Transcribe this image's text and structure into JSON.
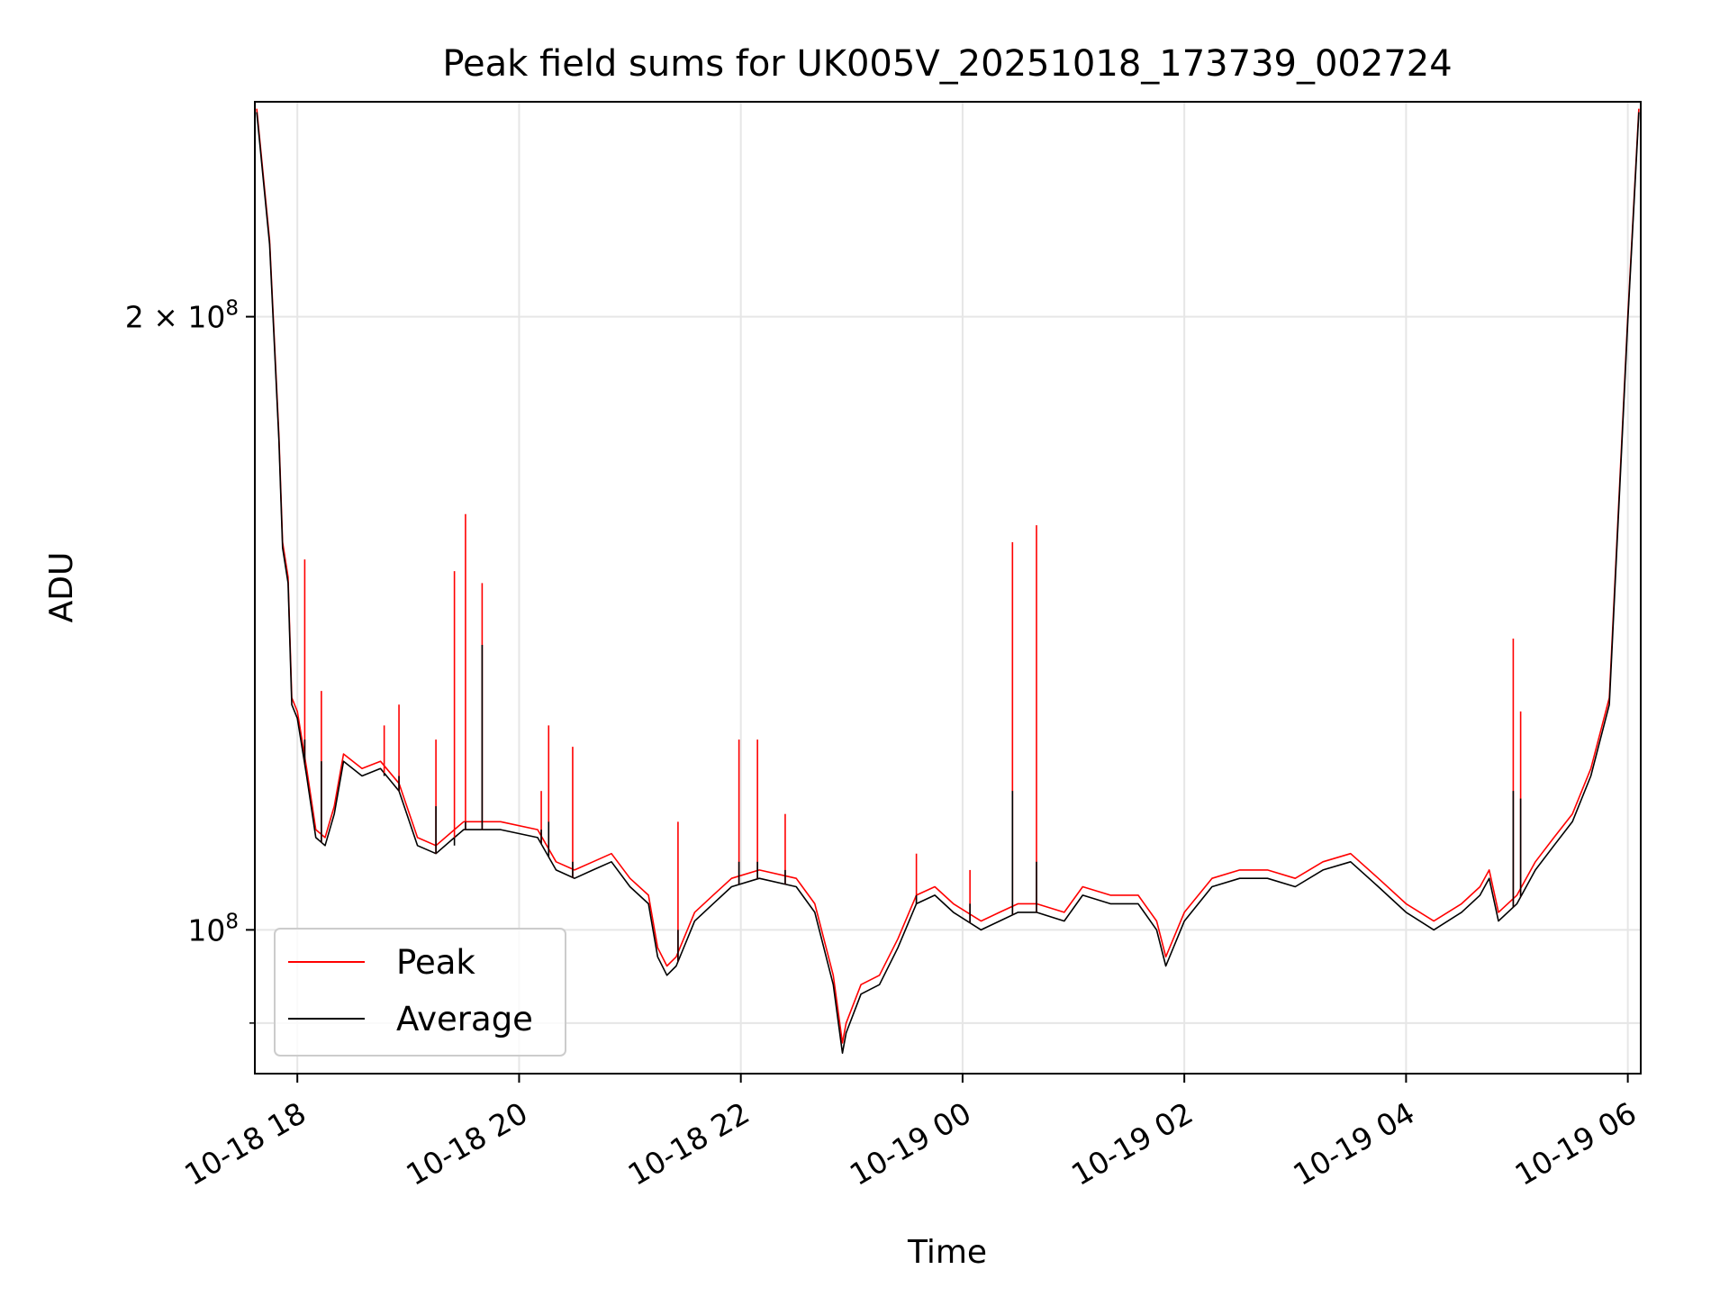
{
  "chart_data": {
    "type": "line",
    "title": "Peak field sums for UK005V_20251018_173739_002724",
    "xlabel": "Time",
    "ylabel": "ADU",
    "y_scale": "log",
    "ylim": [
      85000000,
      255000000
    ],
    "xlim": [
      "2025-10-18T17:37:00",
      "2025-10-19T06:07:00"
    ],
    "x_ticks": [
      {
        "t": "2025-10-18T18:00:00",
        "label": "10-18 18"
      },
      {
        "t": "2025-10-18T20:00:00",
        "label": "10-18 20"
      },
      {
        "t": "2025-10-18T22:00:00",
        "label": "10-18 22"
      },
      {
        "t": "2025-10-19T00:00:00",
        "label": "10-19 00"
      },
      {
        "t": "2025-10-19T02:00:00",
        "label": "10-19 02"
      },
      {
        "t": "2025-10-19T04:00:00",
        "label": "10-19 04"
      },
      {
        "t": "2025-10-19T06:00:00",
        "label": "10-19 06"
      }
    ],
    "y_ticks": [
      {
        "value": 100000000,
        "mantissa": "",
        "exponent": "8",
        "label_major": true
      },
      {
        "value": 200000000,
        "mantissa": "2",
        "exponent": "8",
        "label_major": true
      }
    ],
    "y_minor_ticks": [
      90000000
    ],
    "grid": true,
    "legend_placement": "lower-left",
    "series": [
      {
        "name": "Peak",
        "color": "#ff0000",
        "x": [
          "2025-10-18T17:38:00",
          "2025-10-18T17:45:00",
          "2025-10-18T17:50:00",
          "2025-10-18T17:52:00",
          "2025-10-18T17:55:00",
          "2025-10-18T17:57:00",
          "2025-10-18T18:00:00",
          "2025-10-18T18:05:00",
          "2025-10-18T18:10:00",
          "2025-10-18T18:15:00",
          "2025-10-18T18:20:00",
          "2025-10-18T18:25:00",
          "2025-10-18T18:35:00",
          "2025-10-18T18:45:00",
          "2025-10-18T18:55:00",
          "2025-10-18T19:05:00",
          "2025-10-18T19:15:00",
          "2025-10-18T19:25:00",
          "2025-10-18T19:30:00",
          "2025-10-18T19:40:00",
          "2025-10-18T19:50:00",
          "2025-10-18T20:10:00",
          "2025-10-18T20:20:00",
          "2025-10-18T20:30:00",
          "2025-10-18T20:40:00",
          "2025-10-18T20:50:00",
          "2025-10-18T21:00:00",
          "2025-10-18T21:10:00",
          "2025-10-18T21:15:00",
          "2025-10-18T21:20:00",
          "2025-10-18T21:25:00",
          "2025-10-18T21:35:00",
          "2025-10-18T21:45:00",
          "2025-10-18T21:55:00",
          "2025-10-18T22:10:00",
          "2025-10-18T22:30:00",
          "2025-10-18T22:40:00",
          "2025-10-18T22:50:00",
          "2025-10-18T22:55:00",
          "2025-10-18T22:57:00",
          "2025-10-18T23:05:00",
          "2025-10-18T23:15:00",
          "2025-10-18T23:25:00",
          "2025-10-18T23:35:00",
          "2025-10-18T23:45:00",
          "2025-10-18T23:55:00",
          "2025-10-19T00:10:00",
          "2025-10-19T00:20:00",
          "2025-10-19T00:30:00",
          "2025-10-19T00:40:00",
          "2025-10-19T00:55:00",
          "2025-10-19T01:05:00",
          "2025-10-19T01:20:00",
          "2025-10-19T01:35:00",
          "2025-10-19T01:45:00",
          "2025-10-19T01:50:00",
          "2025-10-19T02:00:00",
          "2025-10-19T02:15:00",
          "2025-10-19T02:30:00",
          "2025-10-19T02:45:00",
          "2025-10-19T03:00:00",
          "2025-10-19T03:15:00",
          "2025-10-19T03:30:00",
          "2025-10-19T03:45:00",
          "2025-10-19T04:00:00",
          "2025-10-19T04:15:00",
          "2025-10-19T04:30:00",
          "2025-10-19T04:40:00",
          "2025-10-19T04:45:00",
          "2025-10-19T04:50:00",
          "2025-10-19T05:00:00",
          "2025-10-19T05:10:00",
          "2025-10-19T05:20:00",
          "2025-10-19T05:30:00",
          "2025-10-19T05:40:00",
          "2025-10-19T05:50:00",
          "2025-10-19T06:00:00",
          "2025-10-19T06:06:00"
        ],
        "values": [
          253000000,
          218000000,
          175000000,
          155000000,
          149000000,
          130000000,
          128000000,
          120000000,
          112000000,
          111000000,
          115000000,
          122000000,
          120000000,
          121000000,
          118000000,
          111000000,
          110000000,
          112000000,
          113000000,
          113000000,
          113000000,
          112000000,
          108000000,
          107000000,
          108000000,
          109000000,
          106000000,
          104000000,
          98000000,
          96000000,
          97000000,
          102000000,
          104000000,
          106000000,
          107000000,
          106000000,
          103000000,
          95000000,
          88000000,
          90000000,
          94000000,
          95000000,
          99000000,
          104000000,
          105000000,
          103000000,
          101000000,
          102000000,
          103000000,
          103000000,
          102000000,
          105000000,
          104000000,
          104000000,
          101000000,
          97000000,
          102000000,
          106000000,
          107000000,
          107000000,
          106000000,
          108000000,
          109000000,
          106000000,
          103000000,
          101000000,
          103000000,
          105000000,
          107000000,
          102000000,
          104000000,
          108000000,
          111000000,
          114000000,
          120000000,
          130000000,
          200000000,
          253000000
        ]
      },
      {
        "name": "Average",
        "color": "#000000",
        "x": [
          "2025-10-18T17:38:00",
          "2025-10-18T17:45:00",
          "2025-10-18T17:50:00",
          "2025-10-18T17:52:00",
          "2025-10-18T17:55:00",
          "2025-10-18T17:57:00",
          "2025-10-18T18:00:00",
          "2025-10-18T18:05:00",
          "2025-10-18T18:10:00",
          "2025-10-18T18:15:00",
          "2025-10-18T18:20:00",
          "2025-10-18T18:25:00",
          "2025-10-18T18:35:00",
          "2025-10-18T18:45:00",
          "2025-10-18T18:55:00",
          "2025-10-18T19:05:00",
          "2025-10-18T19:15:00",
          "2025-10-18T19:25:00",
          "2025-10-18T19:30:00",
          "2025-10-18T19:40:00",
          "2025-10-18T19:50:00",
          "2025-10-18T20:10:00",
          "2025-10-18T20:20:00",
          "2025-10-18T20:30:00",
          "2025-10-18T20:40:00",
          "2025-10-18T20:50:00",
          "2025-10-18T21:00:00",
          "2025-10-18T21:10:00",
          "2025-10-18T21:15:00",
          "2025-10-18T21:20:00",
          "2025-10-18T21:25:00",
          "2025-10-18T21:35:00",
          "2025-10-18T21:45:00",
          "2025-10-18T21:55:00",
          "2025-10-18T22:10:00",
          "2025-10-18T22:30:00",
          "2025-10-18T22:40:00",
          "2025-10-18T22:50:00",
          "2025-10-18T22:55:00",
          "2025-10-18T22:57:00",
          "2025-10-18T23:05:00",
          "2025-10-18T23:15:00",
          "2025-10-18T23:25:00",
          "2025-10-18T23:35:00",
          "2025-10-18T23:45:00",
          "2025-10-18T23:55:00",
          "2025-10-19T00:10:00",
          "2025-10-19T00:20:00",
          "2025-10-19T00:30:00",
          "2025-10-19T00:40:00",
          "2025-10-19T00:55:00",
          "2025-10-19T01:05:00",
          "2025-10-19T01:20:00",
          "2025-10-19T01:35:00",
          "2025-10-19T01:45:00",
          "2025-10-19T01:50:00",
          "2025-10-19T02:00:00",
          "2025-10-19T02:15:00",
          "2025-10-19T02:30:00",
          "2025-10-19T02:45:00",
          "2025-10-19T03:00:00",
          "2025-10-19T03:15:00",
          "2025-10-19T03:30:00",
          "2025-10-19T03:45:00",
          "2025-10-19T04:00:00",
          "2025-10-19T04:15:00",
          "2025-10-19T04:30:00",
          "2025-10-19T04:40:00",
          "2025-10-19T04:45:00",
          "2025-10-19T04:50:00",
          "2025-10-19T05:00:00",
          "2025-10-19T05:10:00",
          "2025-10-19T05:20:00",
          "2025-10-19T05:30:00",
          "2025-10-19T05:40:00",
          "2025-10-19T05:50:00",
          "2025-10-19T06:00:00",
          "2025-10-19T06:06:00"
        ],
        "values": [
          252000000,
          217000000,
          174000000,
          154000000,
          148000000,
          129000000,
          127000000,
          119000000,
          111000000,
          110000000,
          114000000,
          121000000,
          119000000,
          120000000,
          117000000,
          110000000,
          109000000,
          111000000,
          112000000,
          112000000,
          112000000,
          111000000,
          107000000,
          106000000,
          107000000,
          108000000,
          105000000,
          103000000,
          97000000,
          95000000,
          96000000,
          101000000,
          103000000,
          105000000,
          106000000,
          105000000,
          102000000,
          94000000,
          87000000,
          89000000,
          93000000,
          94000000,
          98000000,
          103000000,
          104000000,
          102000000,
          100000000,
          101000000,
          102000000,
          102000000,
          101000000,
          104000000,
          103000000,
          103000000,
          100000000,
          96000000,
          101000000,
          105000000,
          106000000,
          106000000,
          105000000,
          107000000,
          108000000,
          105000000,
          102000000,
          100000000,
          102000000,
          104000000,
          106000000,
          101000000,
          103000000,
          107000000,
          110000000,
          113000000,
          119000000,
          129000000,
          199000000,
          252000000
        ]
      }
    ],
    "spikes": [
      {
        "t": "2025-10-18T18:04:00",
        "peak": 152000000,
        "average": 124000000
      },
      {
        "t": "2025-10-18T18:13:00",
        "peak": 131000000,
        "average": 121000000
      },
      {
        "t": "2025-10-18T18:47:00",
        "peak": 126000000,
        "average": 119000000
      },
      {
        "t": "2025-10-18T18:55:00",
        "peak": 129000000,
        "average": 119000000
      },
      {
        "t": "2025-10-18T19:15:00",
        "peak": 124000000,
        "average": 115000000
      },
      {
        "t": "2025-10-18T19:25:00",
        "peak": 150000000,
        "average": 110000000
      },
      {
        "t": "2025-10-18T19:31:00",
        "peak": 160000000,
        "average": 113000000
      },
      {
        "t": "2025-10-18T19:40:00",
        "peak": 148000000,
        "average": 138000000
      },
      {
        "t": "2025-10-18T20:12:00",
        "peak": 117000000,
        "average": 112000000
      },
      {
        "t": "2025-10-18T20:16:00",
        "peak": 126000000,
        "average": 113000000
      },
      {
        "t": "2025-10-18T20:29:00",
        "peak": 123000000,
        "average": 108000000
      },
      {
        "t": "2025-10-18T21:26:00",
        "peak": 113000000,
        "average": 100000000
      },
      {
        "t": "2025-10-18T21:59:00",
        "peak": 124000000,
        "average": 108000000
      },
      {
        "t": "2025-10-18T22:09:00",
        "peak": 124000000,
        "average": 108000000
      },
      {
        "t": "2025-10-18T22:24:00",
        "peak": 114000000,
        "average": 107000000
      },
      {
        "t": "2025-10-18T23:35:00",
        "peak": 109000000,
        "average": 104000000
      },
      {
        "t": "2025-10-19T00:04:00",
        "peak": 107000000,
        "average": 103000000
      },
      {
        "t": "2025-10-19T00:27:00",
        "peak": 155000000,
        "average": 117000000
      },
      {
        "t": "2025-10-19T00:40:00",
        "peak": 158000000,
        "average": 108000000
      },
      {
        "t": "2025-10-19T04:58:00",
        "peak": 139000000,
        "average": 117000000
      },
      {
        "t": "2025-10-19T05:02:00",
        "peak": 128000000,
        "average": 116000000
      }
    ],
    "legend": [
      "Peak",
      "Average"
    ]
  }
}
